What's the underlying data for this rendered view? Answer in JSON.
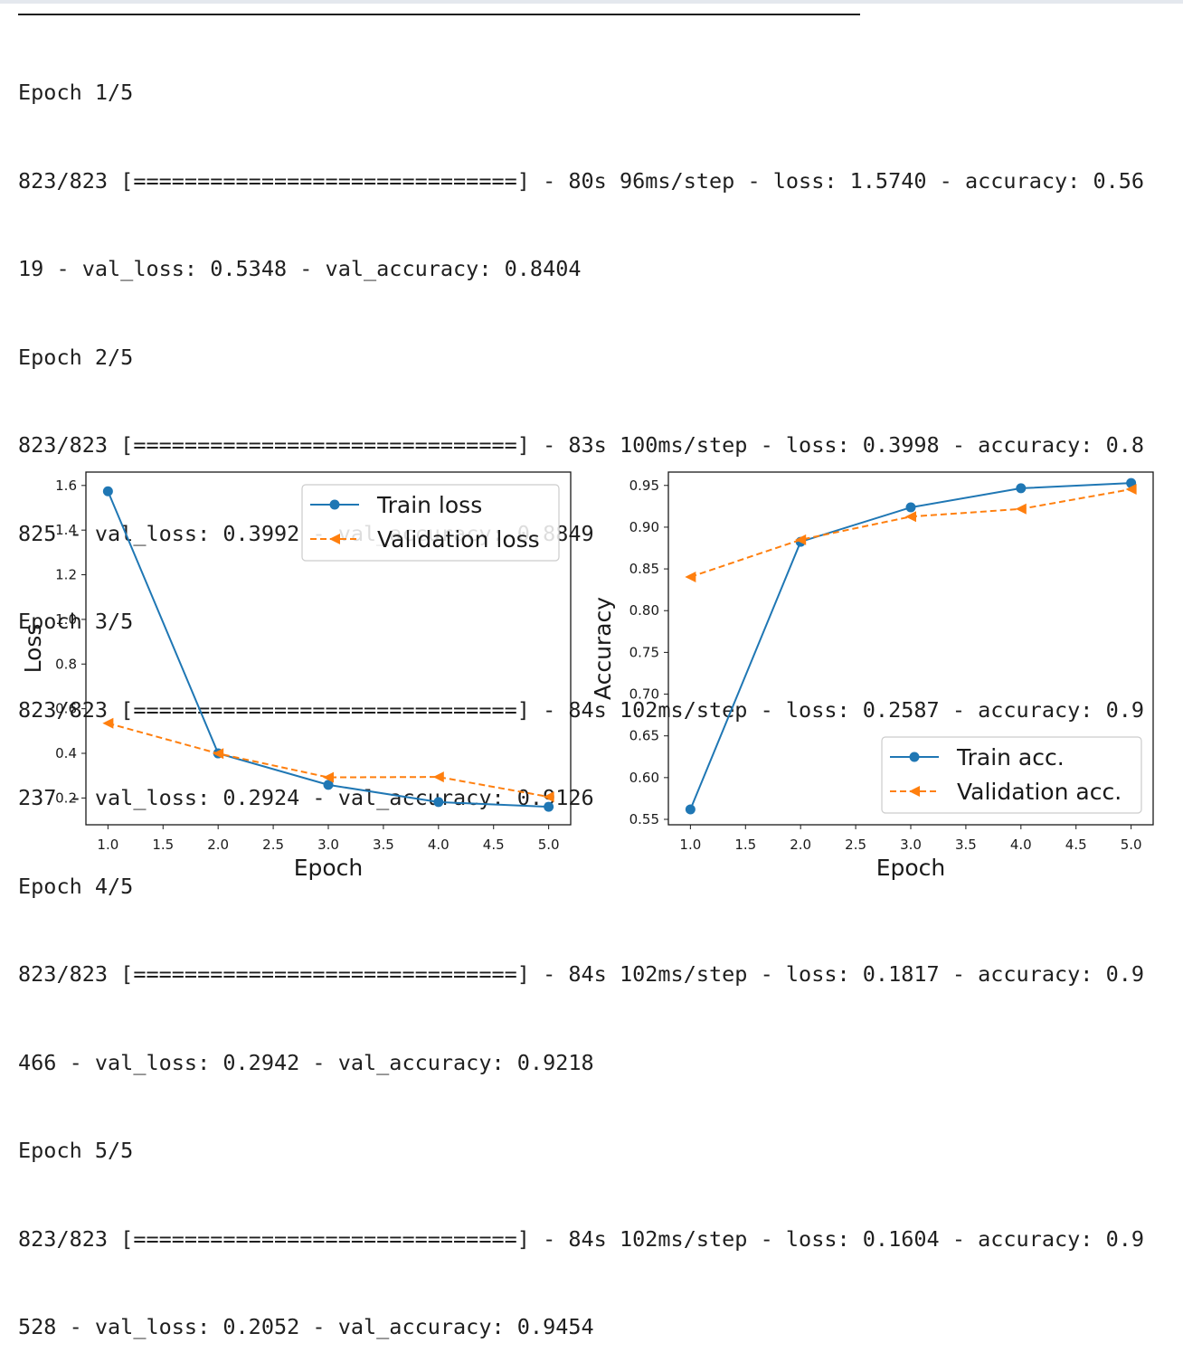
{
  "log": {
    "lines": [
      "Epoch 1/5",
      "823/823 [==============================] - 80s 96ms/step - loss: 1.5740 - accuracy: 0.56",
      "19 - val_loss: 0.5348 - val_accuracy: 0.8404",
      "Epoch 2/5",
      "823/823 [==============================] - 83s 100ms/step - loss: 0.3998 - accuracy: 0.8",
      "825 - val_loss: 0.3992 - val_accuracy: 0.8849",
      "Epoch 3/5",
      "823/823 [==============================] - 84s 102ms/step - loss: 0.2587 - accuracy: 0.9",
      "237 - val_loss: 0.2924 - val_accuracy: 0.9126",
      "Epoch 4/5",
      "823/823 [==============================] - 84s 102ms/step - loss: 0.1817 - accuracy: 0.9",
      "466 - val_loss: 0.2942 - val_accuracy: 0.9218",
      "Epoch 5/5",
      "823/823 [==============================] - 84s 102ms/step - loss: 0.1604 - accuracy: 0.9",
      "528 - val_loss: 0.2052 - val_accuracy: 0.9454"
    ]
  },
  "chart_data": [
    {
      "type": "line",
      "title": "",
      "xlabel": "Epoch",
      "ylabel": "Loss",
      "x": [
        1,
        2,
        3,
        4,
        5
      ],
      "xlim": [
        0.8,
        5.2
      ],
      "ylim": [
        0.08,
        1.66
      ],
      "xticks": [
        1.0,
        1.5,
        2.0,
        2.5,
        3.0,
        3.5,
        4.0,
        4.5,
        5.0
      ],
      "xtick_labels": [
        "1.0",
        "1.5",
        "2.0",
        "2.5",
        "3.0",
        "3.5",
        "4.0",
        "4.5",
        "5.0"
      ],
      "yticks": [
        0.2,
        0.4,
        0.6,
        0.8,
        1.0,
        1.2,
        1.4,
        1.6
      ],
      "ytick_labels": [
        "0.2",
        "0.4",
        "0.6",
        "0.8",
        "1.0",
        "1.2",
        "1.4",
        "1.6"
      ],
      "grid": false,
      "legend_position": "upper right",
      "series": [
        {
          "name": "Train loss",
          "values": [
            1.574,
            0.3998,
            0.2587,
            0.1817,
            0.1604
          ],
          "color": "#1f77b4",
          "style": "solid",
          "marker": "circle"
        },
        {
          "name": "Validation loss",
          "values": [
            0.5348,
            0.3992,
            0.2924,
            0.2942,
            0.2052
          ],
          "color": "#ff7f0e",
          "style": "dashed",
          "marker": "triangle-left"
        }
      ]
    },
    {
      "type": "line",
      "title": "",
      "xlabel": "Epoch",
      "ylabel": "Accuracy",
      "x": [
        1,
        2,
        3,
        4,
        5
      ],
      "xlim": [
        0.8,
        5.2
      ],
      "ylim": [
        0.5435,
        0.966
      ],
      "xticks": [
        1.0,
        1.5,
        2.0,
        2.5,
        3.0,
        3.5,
        4.0,
        4.5,
        5.0
      ],
      "xtick_labels": [
        "1.0",
        "1.5",
        "2.0",
        "2.5",
        "3.0",
        "3.5",
        "4.0",
        "4.5",
        "5.0"
      ],
      "yticks": [
        0.55,
        0.6,
        0.65,
        0.7,
        0.75,
        0.8,
        0.85,
        0.9,
        0.95
      ],
      "ytick_labels": [
        "0.55",
        "0.60",
        "0.65",
        "0.70",
        "0.75",
        "0.80",
        "0.85",
        "0.90",
        "0.95"
      ],
      "grid": false,
      "legend_position": "lower right",
      "series": [
        {
          "name": "Train acc.",
          "values": [
            0.5619,
            0.8825,
            0.9237,
            0.9466,
            0.9528
          ],
          "color": "#1f77b4",
          "style": "solid",
          "marker": "circle"
        },
        {
          "name": "Validation acc.",
          "values": [
            0.8404,
            0.8849,
            0.9126,
            0.9218,
            0.9454
          ],
          "color": "#ff7f0e",
          "style": "dashed",
          "marker": "triangle-left"
        }
      ]
    }
  ]
}
